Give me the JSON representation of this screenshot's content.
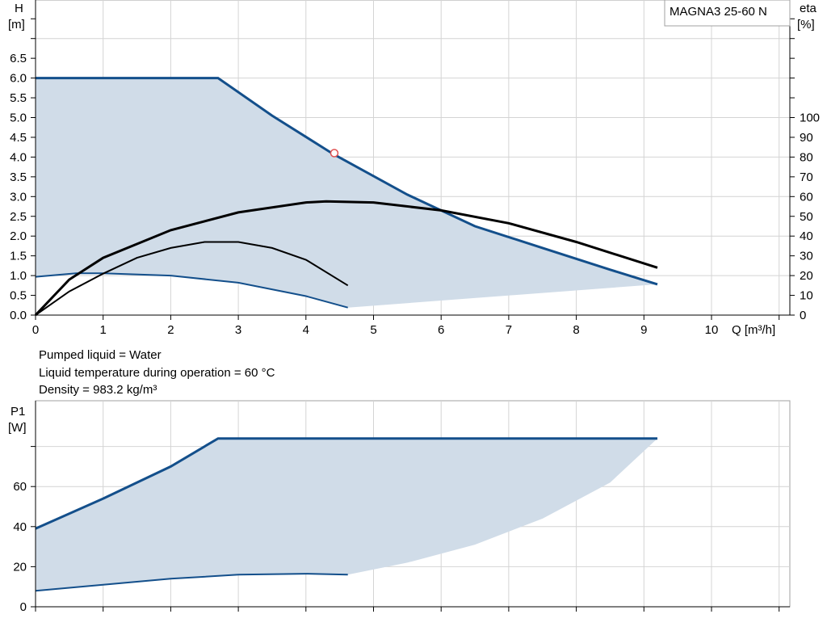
{
  "chart_data": [
    {
      "type": "line",
      "title": "MAGNA3 25-60 N",
      "xlabel": "Q [m³/h]",
      "ylabel_left": "H",
      "ylabel_left_unit": "[m]",
      "ylabel_right": "eta",
      "ylabel_right_unit": "[%]",
      "xlim": [
        0,
        11
      ],
      "ylim_left": [
        0,
        8
      ],
      "ylim_right": [
        0,
        160
      ],
      "x_ticks": [
        "0",
        "1",
        "2",
        "3",
        "4",
        "5",
        "6",
        "7",
        "8",
        "9",
        "10"
      ],
      "y_left_ticks": [
        "0.0",
        "0.5",
        "1.0",
        "1.5",
        "2.0",
        "2.5",
        "3.0",
        "3.5",
        "4.0",
        "4.5",
        "5.0",
        "5.5",
        "6.0",
        "6.5"
      ],
      "y_right_ticks": [
        "0",
        "10",
        "20",
        "30",
        "40",
        "50",
        "60",
        "70",
        "80",
        "90",
        "100"
      ],
      "grid": true,
      "colors": {
        "curve_blue": "#134f8b",
        "area_fill": "#d0dce8",
        "eta_curve": "#000000",
        "marker": "#e05050"
      },
      "series": [
        {
          "axis": "left",
          "role": "H max curve",
          "points": [
            [
              0,
              6.0
            ],
            [
              2.7,
              6.0
            ],
            [
              3.5,
              5.05
            ],
            [
              4.4,
              4.08
            ],
            [
              5.5,
              3.05
            ],
            [
              6.5,
              2.25
            ],
            [
              7.5,
              1.7
            ],
            [
              8.5,
              1.15
            ],
            [
              9.2,
              0.78
            ]
          ]
        },
        {
          "axis": "left",
          "role": "H min curve",
          "points": [
            [
              0,
              0.97
            ],
            [
              0.6,
              1.06
            ],
            [
              1.0,
              1.06
            ],
            [
              2.0,
              1.0
            ],
            [
              3.0,
              0.82
            ],
            [
              4.0,
              0.48
            ],
            [
              4.62,
              0.19
            ]
          ]
        },
        {
          "axis": "left",
          "role": "area boundary",
          "points": [
            [
              4.62,
              0.19
            ],
            [
              9.2,
              0.78
            ]
          ]
        },
        {
          "axis": "right",
          "role": "eta max curve",
          "points": [
            [
              0,
              0
            ],
            [
              0.5,
              18
            ],
            [
              1,
              29
            ],
            [
              2,
              43
            ],
            [
              3,
              52
            ],
            [
              4,
              57
            ],
            [
              4.3,
              57.6
            ],
            [
              5,
              57
            ],
            [
              6,
              53
            ],
            [
              7,
              46.5
            ],
            [
              8,
              37
            ],
            [
              9.2,
              24
            ]
          ]
        },
        {
          "axis": "right",
          "role": "eta min curve",
          "points": [
            [
              0,
              0
            ],
            [
              0.5,
              12
            ],
            [
              1,
              21
            ],
            [
              1.5,
              29
            ],
            [
              2,
              34
            ],
            [
              2.5,
              37
            ],
            [
              3,
              37
            ],
            [
              3.5,
              34
            ],
            [
              4,
              28
            ],
            [
              4.62,
              15
            ]
          ]
        }
      ],
      "annotations": [
        {
          "type": "duty-point",
          "x": 4.42,
          "y": 4.1
        }
      ]
    },
    {
      "type": "line",
      "ylabel": "P1",
      "ylabel_unit": "[W]",
      "xlim": [
        0,
        11
      ],
      "ylim": [
        0,
        84
      ],
      "y_ticks": [
        "0",
        "20",
        "40",
        "60"
      ],
      "grid": true,
      "series": [
        {
          "role": "P1 max curve",
          "points": [
            [
              0,
              39
            ],
            [
              1,
              54
            ],
            [
              2,
              70
            ],
            [
              2.7,
              84
            ],
            [
              9.2,
              84
            ]
          ]
        },
        {
          "role": "P1 min curve",
          "points": [
            [
              0,
              8
            ],
            [
              1,
              11
            ],
            [
              2,
              14
            ],
            [
              3,
              16
            ],
            [
              4,
              16.5
            ],
            [
              4.62,
              16
            ]
          ]
        },
        {
          "role": "area boundary",
          "points": [
            [
              4.62,
              16
            ],
            [
              5.5,
              22
            ],
            [
              6.5,
              31
            ],
            [
              7.5,
              44
            ],
            [
              8.5,
              62
            ],
            [
              9.2,
              84
            ]
          ]
        }
      ]
    }
  ],
  "info": [
    "Pumped liquid = Water",
    "Liquid temperature during operation = 60 °C",
    "Density = 983.2 kg/m³"
  ]
}
